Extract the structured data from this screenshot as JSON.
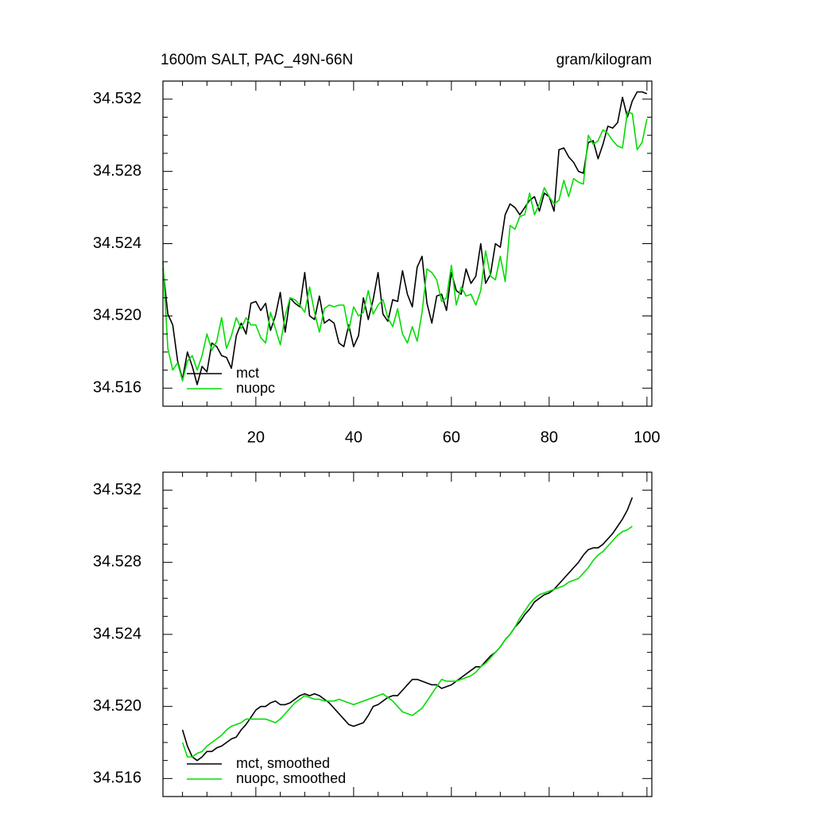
{
  "chart_data": [
    {
      "type": "line",
      "title": "1600m SALT, PAC_49N-66N",
      "units": "gram/kilogram",
      "x": [
        1,
        2,
        3,
        4,
        5,
        6,
        7,
        8,
        9,
        10,
        11,
        12,
        13,
        14,
        15,
        16,
        17,
        18,
        19,
        20,
        21,
        22,
        23,
        24,
        25,
        26,
        27,
        28,
        29,
        30,
        31,
        32,
        33,
        34,
        35,
        36,
        37,
        38,
        39,
        40,
        41,
        42,
        43,
        44,
        45,
        46,
        47,
        48,
        49,
        50,
        51,
        52,
        53,
        54,
        55,
        56,
        57,
        58,
        59,
        60,
        61,
        62,
        63,
        64,
        65,
        66,
        67,
        68,
        69,
        70,
        71,
        72,
        73,
        74,
        75,
        76,
        77,
        78,
        79,
        80,
        81,
        82,
        83,
        84,
        85,
        86,
        87,
        88,
        89,
        90,
        91,
        92,
        93,
        94,
        95,
        96,
        97,
        98,
        99,
        100
      ],
      "series": [
        {
          "name": "mct",
          "color": "#000000",
          "values": [
            34.5226,
            34.5201,
            34.5195,
            34.5175,
            34.5165,
            34.518,
            34.5172,
            34.5162,
            34.5172,
            34.5169,
            34.5185,
            34.5183,
            34.5178,
            34.5177,
            34.5171,
            34.5189,
            34.5196,
            34.519,
            34.5207,
            34.5208,
            34.5203,
            34.5207,
            34.5192,
            34.52,
            34.5213,
            34.5191,
            34.521,
            34.5207,
            34.5205,
            34.5224,
            34.52,
            34.5198,
            34.5211,
            34.5196,
            34.5198,
            34.5196,
            34.5185,
            34.5183,
            34.5195,
            34.5183,
            34.5189,
            34.521,
            34.5198,
            34.5209,
            34.5224,
            34.5201,
            34.5197,
            34.5209,
            34.5208,
            34.5225,
            34.5212,
            34.5205,
            34.5227,
            34.5233,
            34.5207,
            34.5196,
            34.5211,
            34.5212,
            34.5203,
            34.5224,
            34.5214,
            34.5212,
            34.5226,
            34.5218,
            34.5222,
            34.524,
            34.5218,
            34.5223,
            34.524,
            34.5238,
            34.5256,
            34.5262,
            34.526,
            34.5256,
            34.526,
            34.5264,
            34.5266,
            34.5258,
            34.5268,
            34.5266,
            34.5258,
            34.5292,
            34.5293,
            34.5288,
            34.5285,
            34.528,
            34.5279,
            34.5296,
            34.5297,
            34.5287,
            34.5295,
            34.5305,
            34.5304,
            34.5307,
            34.5321,
            34.531,
            34.5319,
            34.5324,
            34.5324,
            34.5323
          ]
        },
        {
          "name": "nuopc",
          "color": "#00dd00",
          "values": [
            34.523,
            34.5182,
            34.517,
            34.5174,
            34.5164,
            34.5175,
            34.5178,
            34.517,
            34.5178,
            34.519,
            34.5181,
            34.5186,
            34.5199,
            34.5182,
            34.5189,
            34.5199,
            34.5193,
            34.5199,
            34.5195,
            34.5195,
            34.5188,
            34.5185,
            34.5202,
            34.5193,
            34.5184,
            34.52,
            34.521,
            34.5209,
            34.5206,
            34.5202,
            34.5216,
            34.5202,
            34.5191,
            34.5204,
            34.5206,
            34.5205,
            34.5206,
            34.5206,
            34.5192,
            34.5205,
            34.52,
            34.5202,
            34.5214,
            34.5201,
            34.5206,
            34.5209,
            34.5199,
            34.5194,
            34.5204,
            34.519,
            34.5185,
            34.5194,
            34.5186,
            34.5202,
            34.5226,
            34.5224,
            34.522,
            34.5208,
            34.521,
            34.5228,
            34.5206,
            34.5216,
            34.5211,
            34.5212,
            34.5206,
            34.5214,
            34.5236,
            34.5222,
            34.522,
            34.5233,
            34.5219,
            34.525,
            34.5248,
            34.5255,
            34.5256,
            34.5268,
            34.5256,
            34.5262,
            34.5271,
            34.5266,
            34.5262,
            34.5264,
            34.5275,
            34.5266,
            34.5276,
            34.5274,
            34.5273,
            34.53,
            34.5295,
            34.5297,
            34.5303,
            34.5301,
            34.5297,
            34.5294,
            34.5293,
            34.5313,
            34.5312,
            34.5292,
            34.5296,
            34.5309
          ]
        }
      ],
      "xlim": [
        1,
        101
      ],
      "xticks": [
        20,
        40,
        60,
        80,
        100
      ],
      "xtick_labels": true,
      "xminorticks": [
        5,
        10,
        15,
        25,
        30,
        35,
        45,
        50,
        55,
        65,
        70,
        75,
        85,
        90,
        95
      ],
      "ylim": [
        34.515,
        34.533
      ],
      "yticks": [
        34.516,
        {
          "value": 34.52,
          "label": "34.520"
        },
        34.524,
        34.528,
        34.532
      ],
      "yminorticks": [
        34.517,
        34.518,
        34.519,
        34.521,
        34.522,
        34.523,
        34.525,
        34.526,
        34.527,
        34.529,
        34.53,
        34.531
      ],
      "legend": "lower left"
    },
    {
      "type": "line",
      "x": [
        5,
        6,
        7,
        8,
        9,
        10,
        11,
        12,
        13,
        14,
        15,
        16,
        17,
        18,
        19,
        20,
        21,
        22,
        23,
        24,
        25,
        26,
        27,
        28,
        29,
        30,
        31,
        32,
        33,
        34,
        35,
        36,
        37,
        38,
        39,
        40,
        41,
        42,
        43,
        44,
        45,
        46,
        47,
        48,
        49,
        50,
        51,
        52,
        53,
        54,
        55,
        56,
        57,
        58,
        59,
        60,
        61,
        62,
        63,
        64,
        65,
        66,
        67,
        68,
        69,
        70,
        71,
        72,
        73,
        74,
        75,
        76,
        77,
        78,
        79,
        80,
        81,
        82,
        83,
        84,
        85,
        86,
        87,
        88,
        89,
        90,
        91,
        92,
        93,
        94,
        95,
        96,
        97
      ],
      "series": [
        {
          "name": "mct, smoothed",
          "color": "#000000",
          "values": [
            34.5187,
            34.5178,
            34.5172,
            34.517,
            34.5172,
            34.5175,
            34.5175,
            34.5177,
            34.5178,
            34.518,
            34.5182,
            34.5183,
            34.5187,
            34.519,
            34.5194,
            34.5198,
            34.52,
            34.52,
            34.5202,
            34.5203,
            34.5201,
            34.5201,
            34.5202,
            34.5204,
            34.5206,
            34.5207,
            34.5206,
            34.5207,
            34.5206,
            34.5204,
            34.5202,
            34.5199,
            34.5196,
            34.5193,
            34.519,
            34.5189,
            34.519,
            34.5191,
            34.5195,
            34.52,
            34.5201,
            34.5203,
            34.5205,
            34.5206,
            34.5206,
            34.5209,
            34.5212,
            34.5215,
            34.5215,
            34.5214,
            34.5213,
            34.5212,
            34.5212,
            34.521,
            34.5211,
            34.5212,
            34.5214,
            34.5216,
            34.5218,
            34.522,
            34.5222,
            34.5222,
            34.5225,
            34.5228,
            34.523,
            34.5233,
            34.5237,
            34.524,
            34.5244,
            34.5247,
            34.5251,
            34.5254,
            34.5258,
            34.526,
            34.5262,
            34.5263,
            34.5265,
            34.5268,
            34.5271,
            34.5274,
            34.5277,
            34.528,
            34.5284,
            34.5287,
            34.5288,
            34.5288,
            34.529,
            34.5293,
            34.5296,
            34.53,
            34.5304,
            34.5309,
            34.5316
          ]
        },
        {
          "name": "nuopc, smoothed",
          "color": "#00dd00",
          "values": [
            34.518,
            34.5172,
            34.5172,
            34.5174,
            34.5175,
            34.5178,
            34.518,
            34.5182,
            34.5184,
            34.5187,
            34.5189,
            34.519,
            34.5191,
            34.5193,
            34.5193,
            34.5193,
            34.5193,
            34.5193,
            34.5192,
            34.5191,
            34.5193,
            34.5196,
            34.5199,
            34.5202,
            34.5204,
            34.5206,
            34.5205,
            34.5204,
            34.5204,
            34.5203,
            34.5203,
            34.5203,
            34.5204,
            34.5203,
            34.5202,
            34.5201,
            34.5202,
            34.5203,
            34.5204,
            34.5205,
            34.5206,
            34.5207,
            34.5205,
            34.5203,
            34.52,
            34.5197,
            34.5196,
            34.5195,
            34.5197,
            34.5199,
            34.5203,
            34.5207,
            34.5211,
            34.5215,
            34.5214,
            34.5214,
            34.5214,
            34.5215,
            34.5216,
            34.5217,
            34.5219,
            34.5222,
            34.5224,
            34.5227,
            34.523,
            34.5233,
            34.5237,
            34.524,
            34.5244,
            34.5249,
            34.5253,
            34.5257,
            34.526,
            34.5262,
            34.5263,
            34.5264,
            34.5265,
            34.5266,
            34.5267,
            34.5269,
            34.527,
            34.5271,
            34.5274,
            34.5277,
            34.5281,
            34.5284,
            34.5286,
            34.5289,
            34.5292,
            34.5295,
            34.5297,
            34.5298,
            34.53
          ]
        }
      ],
      "xlim": [
        1,
        101
      ],
      "xticks": [
        20,
        40,
        60,
        80,
        100
      ],
      "xtick_labels": false,
      "xminorticks": [
        5,
        10,
        15,
        25,
        30,
        35,
        45,
        50,
        55,
        65,
        70,
        75,
        85,
        90,
        95
      ],
      "ylim": [
        34.515,
        34.533
      ],
      "yticks": [
        34.516,
        {
          "value": 34.52,
          "label": "34.520"
        },
        34.524,
        34.528,
        34.532
      ],
      "yminorticks": [
        34.517,
        34.518,
        34.519,
        34.521,
        34.522,
        34.523,
        34.525,
        34.526,
        34.527,
        34.529,
        34.53,
        34.531
      ],
      "legend": "lower left"
    }
  ]
}
